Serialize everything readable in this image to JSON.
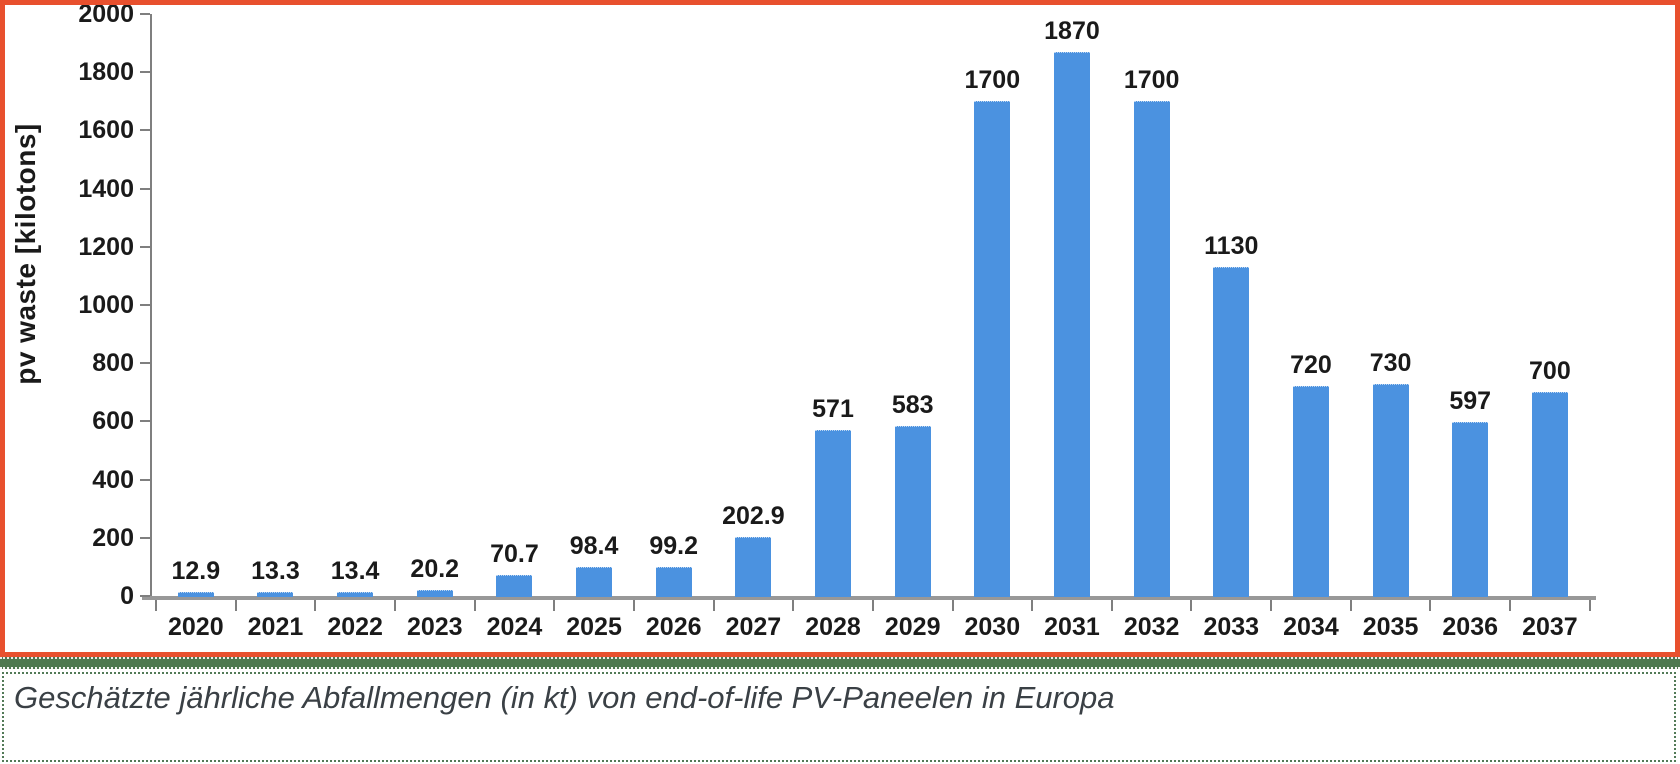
{
  "chart_data": {
    "type": "bar",
    "title": "",
    "xlabel": "",
    "ylabel": "pv waste [kilotons]",
    "categories": [
      "2020",
      "2021",
      "2022",
      "2023",
      "2024",
      "2025",
      "2026",
      "2027",
      "2028",
      "2029",
      "2030",
      "2031",
      "2032",
      "2033",
      "2034",
      "2035",
      "2036",
      "2037"
    ],
    "values": [
      12.9,
      13.3,
      13.4,
      20.2,
      70.7,
      98.4,
      99.2,
      202.9,
      571,
      583,
      1700,
      1870,
      1700,
      1130,
      720,
      730,
      597,
      700
    ],
    "bar_labels": [
      "12.9",
      "13.3",
      "13.4",
      "20.2",
      "70.7",
      "98.4",
      "99.2",
      "202.9",
      "571",
      "583",
      "1700",
      "1870",
      "1700",
      "1130",
      "720",
      "730",
      "597",
      "700"
    ],
    "ylim": [
      0,
      2000
    ],
    "yticks": [
      0,
      200,
      400,
      600,
      800,
      1000,
      1200,
      1400,
      1600,
      1800,
      2000
    ],
    "grid": false,
    "legend": false
  },
  "caption": {
    "text": "Geschätzte jährliche Abfallmengen (in kt) von end-of-life PV-Paneelen in Europa"
  },
  "colors": {
    "bar": "#4B92E0",
    "chart_border": "#E8502E",
    "separator": "#4E7950",
    "axis_line": "#989898",
    "tick": "#7f7f7f",
    "label_text": "#1a1a1a",
    "caption_text": "#3a4045",
    "caption_border": "#527a57",
    "background": "#ffffff"
  }
}
